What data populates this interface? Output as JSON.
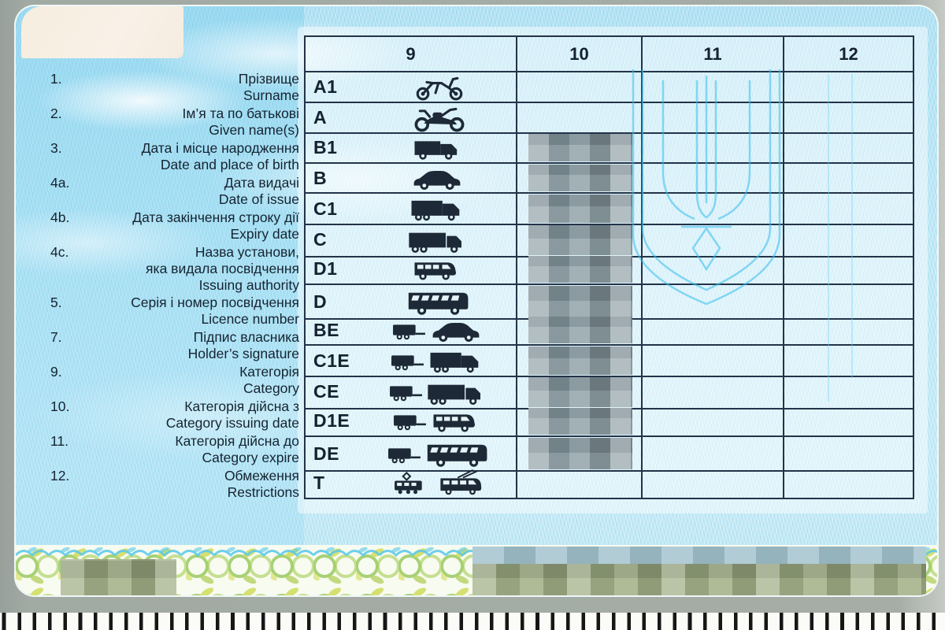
{
  "card": {
    "header_columns": [
      "9",
      "10",
      "11",
      "12"
    ],
    "fields": [
      {
        "num": "1.",
        "uk": "Прізвище",
        "en": "Surname"
      },
      {
        "num": "2.",
        "uk": "Ім’я та по батькові",
        "en": "Given name(s)"
      },
      {
        "num": "3.",
        "uk": "Дата і місце народження",
        "en": "Date and place of birth"
      },
      {
        "num": "4a.",
        "uk": "Дата видачі",
        "en": "Date of issue"
      },
      {
        "num": "4b.",
        "uk": "Дата закінчення строку дії",
        "en": "Expiry date"
      },
      {
        "num": "4c.",
        "uk": "Назва установи,",
        "uk2": "яка видала посвідчення",
        "en": "Issuing authority"
      },
      {
        "num": "5.",
        "uk": "Серія і номер посвідчення",
        "en": "Licence number"
      },
      {
        "num": "7.",
        "uk": "Підпис власника",
        "en": "Holder’s signature"
      },
      {
        "num": "9.",
        "uk": "Категорія",
        "en": "Category"
      },
      {
        "num": "10.",
        "uk": "Категорія дійсна з",
        "en": "Category issuing date"
      },
      {
        "num": "11.",
        "uk": "Категорія дійсна до",
        "en": "Category expire"
      },
      {
        "num": "12.",
        "uk": "Обмеження",
        "en": "Restrictions"
      }
    ],
    "categories": [
      {
        "code": "A1",
        "icons": [
          "moped"
        ],
        "redacted_col10": false
      },
      {
        "code": "A",
        "icons": [
          "motorcycle"
        ],
        "redacted_col10": false
      },
      {
        "code": "B1",
        "icons": [
          "van"
        ],
        "redacted_col10": true
      },
      {
        "code": "B",
        "icons": [
          "car"
        ],
        "redacted_col10": true
      },
      {
        "code": "C1",
        "icons": [
          "truck-small"
        ],
        "redacted_col10": true
      },
      {
        "code": "C",
        "icons": [
          "truck"
        ],
        "redacted_col10": true
      },
      {
        "code": "D1",
        "icons": [
          "minibus"
        ],
        "redacted_col10": true
      },
      {
        "code": "D",
        "icons": [
          "bus"
        ],
        "redacted_col10": true
      },
      {
        "code": "BE",
        "icons": [
          "trailer",
          "car"
        ],
        "redacted_col10": true
      },
      {
        "code": "C1E",
        "icons": [
          "trailer",
          "truck-small"
        ],
        "redacted_col10": true
      },
      {
        "code": "CE",
        "icons": [
          "trailer",
          "truck"
        ],
        "redacted_col10": true
      },
      {
        "code": "D1E",
        "icons": [
          "trailer",
          "minibus"
        ],
        "redacted_col10": true
      },
      {
        "code": "DE",
        "icons": [
          "trailer",
          "bus"
        ],
        "redacted_col10": true
      },
      {
        "code": "T",
        "icons": [
          "tram",
          "trolleybus"
        ],
        "redacted_col10": false
      }
    ],
    "colors": {
      "card_blue": "#c3eaf7",
      "table_line": "#233349",
      "text": "#152330",
      "watermark_blue": "#3cc0ee",
      "floral_green": "#8cc24f",
      "floral_yellow": "#ccd952",
      "floral_blue": "#57c8ea",
      "mosaic_gray": "#86979e",
      "mosaic_green": "#99a67f",
      "ruler_tick": "#161616",
      "cream_patch": "#f7efe3"
    }
  }
}
